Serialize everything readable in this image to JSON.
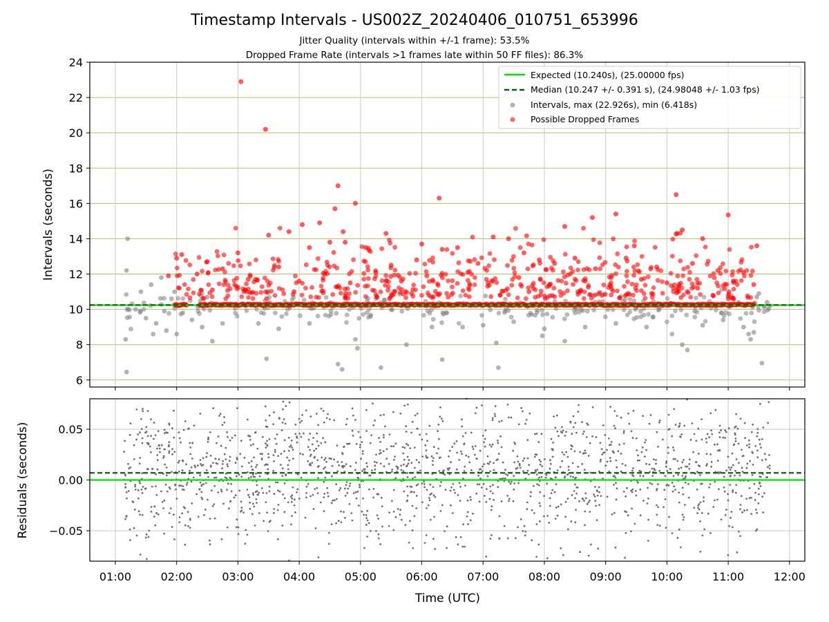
{
  "figure": {
    "title": "Timestamp Intervals - US002Z_20240406_010751_653996",
    "subtitle_1": "Jitter Quality (intervals within +/-1 frame): 53.5%",
    "subtitle_2": "Dropped Frame Rate (intervals >1 frames late within 50 FF files): 86.3%"
  },
  "colors": {
    "expected": "#00e000",
    "median": "#006400",
    "intervals": "#808080",
    "dropped": "#ff0000",
    "hgrid": "#c8b560",
    "vgrid": "#c8c8c8",
    "residual_points": "#6e6e6e"
  },
  "chart_data": [
    {
      "type": "scatter",
      "name": "intervals",
      "title": "",
      "xlabel": "",
      "ylabel": "Intervals (seconds)",
      "xlim": [
        "00:35",
        "12:15"
      ],
      "ylim": [
        5.6,
        24
      ],
      "yticks": [
        6,
        8,
        10,
        12,
        14,
        16,
        18,
        20,
        22,
        24
      ],
      "xticks": [
        "01:00",
        "02:00",
        "03:00",
        "04:00",
        "05:00",
        "06:00",
        "07:00",
        "08:00",
        "09:00",
        "10:00",
        "11:00",
        "12:00"
      ],
      "grid": true,
      "legend_position": "top-right",
      "time_span": [
        "01:08",
        "11:41"
      ],
      "expected_interval": 10.24,
      "median_interval": 10.247,
      "legend": [
        "Expected (10.240s), (25.00000 fps)",
        "Median (10.247 +/- 0.391 s), (24.98048 +/- 1.03 fps)",
        "Intervals, max (22.926s), min (6.418s)",
        "Possible Dropped Frames"
      ],
      "series": [
        {
          "name": "Intervals, max (22.926s), min (6.418s)",
          "points": [
            [
              "01:12",
              14.0
            ],
            [
              "01:11",
              12.2
            ],
            [
              "01:10",
              8.3
            ],
            [
              "01:11",
              6.45
            ],
            [
              "01:20",
              10.0
            ],
            [
              "01:25",
              11.0
            ],
            [
              "01:30",
              9.5
            ],
            [
              "01:35",
              11.4
            ],
            [
              "01:40",
              9.2
            ],
            [
              "01:45",
              11.8
            ],
            [
              "01:50",
              8.8
            ],
            [
              "01:55",
              10.6
            ],
            [
              "02:00",
              8.6
            ],
            [
              "01:58",
              11.0
            ],
            [
              "01:37",
              8.6
            ],
            [
              "02:06",
              9.8
            ],
            [
              "02:15",
              9.4
            ],
            [
              "02:25",
              9.0
            ],
            [
              "02:35",
              8.2
            ],
            [
              "02:45",
              9.2
            ],
            [
              "03:20",
              9.2
            ],
            [
              "03:28",
              7.2
            ],
            [
              "03:40",
              8.9
            ],
            [
              "04:10",
              9.2
            ],
            [
              "04:38",
              6.9
            ],
            [
              "04:42",
              6.6
            ],
            [
              "04:55",
              8.3
            ],
            [
              "04:57",
              7.8
            ],
            [
              "05:20",
              6.7
            ],
            [
              "05:45",
              8.0
            ],
            [
              "06:10",
              9.0
            ],
            [
              "06:20",
              7.15
            ],
            [
              "06:40",
              9.0
            ],
            [
              "07:00",
              9.1
            ],
            [
              "07:15",
              6.7
            ],
            [
              "07:13",
              8.1
            ],
            [
              "07:30",
              9.3
            ],
            [
              "07:58",
              8.5
            ],
            [
              "08:00",
              8.9
            ],
            [
              "08:20",
              8.2
            ],
            [
              "08:40",
              9.0
            ],
            [
              "09:10",
              9.2
            ],
            [
              "09:40",
              9.0
            ],
            [
              "10:05",
              8.6
            ],
            [
              "10:15",
              8.0
            ],
            [
              "10:20",
              7.7
            ],
            [
              "10:35",
              9.1
            ],
            [
              "10:55",
              9.4
            ],
            [
              "11:15",
              9.0
            ],
            [
              "11:20",
              8.6
            ],
            [
              "11:22",
              8.3
            ],
            [
              "11:25",
              8.7
            ],
            [
              "11:28",
              10.7
            ],
            [
              "11:30",
              10.9
            ],
            [
              "11:33",
              6.95
            ],
            [
              "11:38",
              10.4
            ],
            [
              "11:41",
              10.2
            ],
            [
              "01:48",
              9.9
            ],
            [
              "02:30",
              10.7
            ],
            [
              "05:10",
              9.6
            ]
          ]
        },
        {
          "name": "Possible Dropped Frames",
          "points": [
            [
              "03:03",
              22.9
            ],
            [
              "03:27",
              20.2
            ],
            [
              "04:38",
              17.0
            ],
            [
              "04:55",
              16.0
            ],
            [
              "06:17",
              16.3
            ],
            [
              "10:09",
              16.5
            ],
            [
              "04:35",
              15.7
            ],
            [
              "08:47",
              15.2
            ],
            [
              "09:10",
              15.4
            ],
            [
              "11:00",
              15.35
            ],
            [
              "04:20",
              14.9
            ],
            [
              "04:03",
              14.8
            ],
            [
              "04:43",
              14.4
            ],
            [
              "05:25",
              14.3
            ],
            [
              "06:00",
              13.7
            ],
            [
              "07:10",
              14.1
            ],
            [
              "07:25",
              14.0
            ],
            [
              "08:20",
              14.7
            ],
            [
              "09:28",
              13.6
            ],
            [
              "10:10",
              14.3
            ],
            [
              "10:15",
              14.5
            ],
            [
              "10:35",
              14.0
            ],
            [
              "11:28",
              13.6
            ],
            [
              "03:00",
              13.2
            ],
            [
              "03:30",
              14.2
            ],
            [
              "03:50",
              14.4
            ],
            [
              "04:10",
              13.5
            ],
            [
              "04:30",
              13.8
            ],
            [
              "04:45",
              13.8
            ],
            [
              "05:05",
              13.5
            ],
            [
              "05:30",
              12.5
            ],
            [
              "05:55",
              12.8
            ],
            [
              "06:20",
              13.4
            ],
            [
              "06:35",
              13.5
            ],
            [
              "06:55",
              12.6
            ],
            [
              "07:40",
              13.2
            ],
            [
              "07:55",
              12.8
            ],
            [
              "08:10",
              12.6
            ],
            [
              "08:30",
              12.9
            ],
            [
              "08:50",
              12.3
            ],
            [
              "09:20",
              12.9
            ],
            [
              "09:50",
              12.4
            ],
            [
              "10:25",
              12.6
            ],
            [
              "10:50",
              12.2
            ],
            [
              "11:15",
              12.1
            ],
            [
              "01:52",
              11.9
            ],
            [
              "02:00",
              12.9
            ],
            [
              "02:05",
              13.1
            ],
            [
              "02:20",
              12.0
            ],
            [
              "02:30",
              12.7
            ],
            [
              "02:45",
              12.3
            ],
            [
              "03:10",
              11.7
            ],
            [
              "03:40",
              12.4
            ],
            [
              "04:00",
              11.6
            ],
            [
              "04:25",
              12.0
            ],
            [
              "04:50",
              11.5
            ],
            [
              "05:15",
              12.1
            ],
            [
              "05:40",
              11.6
            ],
            [
              "06:05",
              11.9
            ],
            [
              "06:45",
              12.1
            ],
            [
              "07:05",
              11.5
            ],
            [
              "07:35",
              11.8
            ],
            [
              "08:05",
              11.4
            ],
            [
              "08:40",
              11.6
            ],
            [
              "09:05",
              11.3
            ],
            [
              "09:35",
              11.7
            ],
            [
              "10:00",
              11.5
            ],
            [
              "10:30",
              11.2
            ],
            [
              "11:05",
              11.6
            ],
            [
              "11:25",
              11.4
            ],
            [
              "02:35",
              11.1
            ],
            [
              "03:55",
              11.0
            ],
            [
              "05:50",
              10.9
            ],
            [
              "07:45",
              11.0
            ],
            [
              "09:45",
              10.9
            ],
            [
              "10:45",
              10.8
            ]
          ]
        }
      ]
    },
    {
      "type": "scatter",
      "name": "residuals",
      "xlabel": "Time (UTC)",
      "ylabel": "Residuals (seconds)",
      "xlim": [
        "00:35",
        "12:15"
      ],
      "ylim": [
        -0.08,
        0.08
      ],
      "yticks": [
        -0.05,
        0.0,
        0.05
      ],
      "ytick_labels": [
        "−0.05",
        "0.00",
        "0.05"
      ],
      "xticks": [
        "01:00",
        "02:00",
        "03:00",
        "04:00",
        "05:00",
        "06:00",
        "07:00",
        "08:00",
        "09:00",
        "10:00",
        "11:00",
        "12:00"
      ],
      "grid": true,
      "expected_residual": 0.0,
      "median_residual": 0.007,
      "point_spread": [
        -0.08,
        0.08
      ]
    }
  ]
}
